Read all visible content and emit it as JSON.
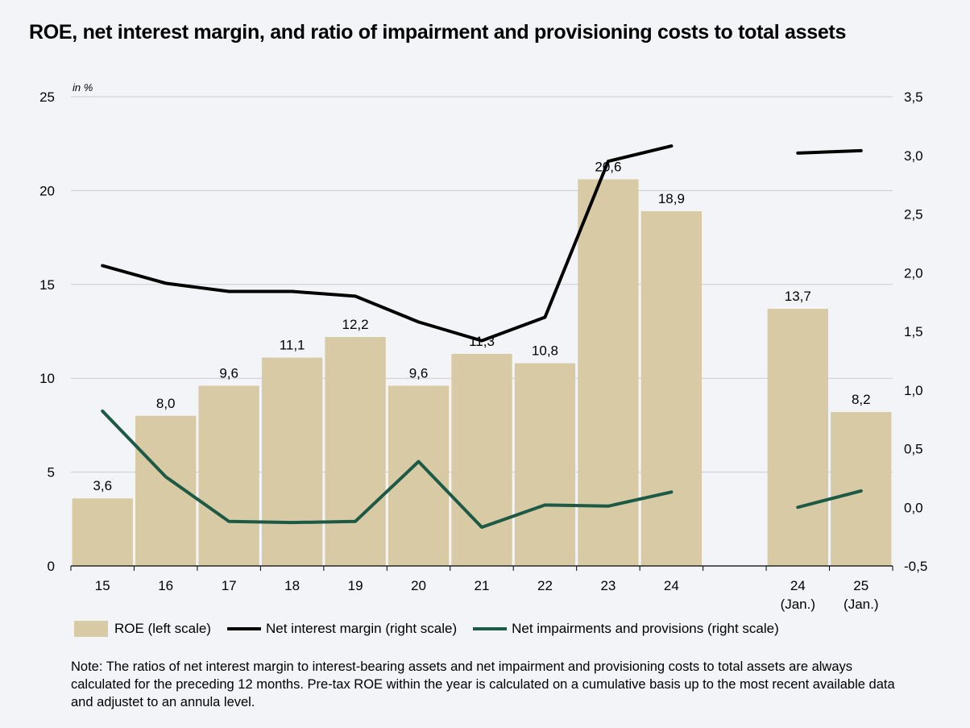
{
  "title": "ROE, net interest margin, and ratio of impairment and provisioning costs to total assets",
  "chart_data": {
    "type": "bar",
    "unit_label": "in %",
    "categories": [
      {
        "label": "15",
        "sub": ""
      },
      {
        "label": "16",
        "sub": ""
      },
      {
        "label": "17",
        "sub": ""
      },
      {
        "label": "18",
        "sub": ""
      },
      {
        "label": "19",
        "sub": ""
      },
      {
        "label": "20",
        "sub": ""
      },
      {
        "label": "21",
        "sub": ""
      },
      {
        "label": "22",
        "sub": ""
      },
      {
        "label": "23",
        "sub": ""
      },
      {
        "label": "24",
        "sub": ""
      },
      {
        "label": "",
        "sub": ""
      },
      {
        "label": "24",
        "sub": "(Jan.)"
      },
      {
        "label": "25",
        "sub": "(Jan.)"
      }
    ],
    "left_axis": {
      "min": 0,
      "max": 25,
      "ticks": [
        "0",
        "5",
        "10",
        "15",
        "20",
        "25"
      ]
    },
    "right_axis": {
      "min": -0.5,
      "max": 3.5,
      "ticks": [
        "-0,5",
        "0,0",
        "0,5",
        "1,0",
        "1,5",
        "2,0",
        "2,5",
        "3,0",
        "3,5"
      ]
    },
    "grid": true,
    "series": [
      {
        "name": "ROE (left scale)",
        "kind": "bar",
        "axis": "left",
        "color": "#d7caa4",
        "values": [
          3.6,
          8.0,
          9.6,
          11.1,
          12.2,
          9.6,
          11.3,
          10.8,
          20.6,
          18.9,
          null,
          13.7,
          8.2
        ],
        "labels": [
          "3,6",
          "8,0",
          "9,6",
          "11,1",
          "12,2",
          "9,6",
          "11,3",
          "10,8",
          "20,6",
          "18,9",
          "",
          "13,7",
          "8,2"
        ]
      },
      {
        "name": "Net interest margin (right scale)",
        "kind": "line",
        "axis": "right",
        "color": "#000000",
        "values": [
          2.06,
          1.91,
          1.84,
          1.84,
          1.8,
          1.58,
          1.42,
          1.62,
          2.95,
          3.08,
          null,
          3.02,
          3.04
        ]
      },
      {
        "name": "Net impairments and provisions (right scale)",
        "kind": "line",
        "axis": "right",
        "color": "#1d5a46",
        "values": [
          0.82,
          0.26,
          -0.12,
          -0.13,
          -0.12,
          0.39,
          -0.17,
          0.02,
          0.01,
          0.13,
          null,
          0.0,
          0.14
        ]
      }
    ],
    "legend": "bottom"
  },
  "legend": {
    "roe": "ROE (left scale)",
    "nim": "Net interest margin (right scale)",
    "imp": "Net impairments and provisions (right scale)"
  },
  "note": "Note: The ratios of net interest margin to interest-bearing assets and net impairment and provisioning costs to total assets are always calculated for the preceding 12 months. Pre-tax ROE within the year is calculated on a cumulative basis up to the most recent available data and adjustet to an annula level."
}
